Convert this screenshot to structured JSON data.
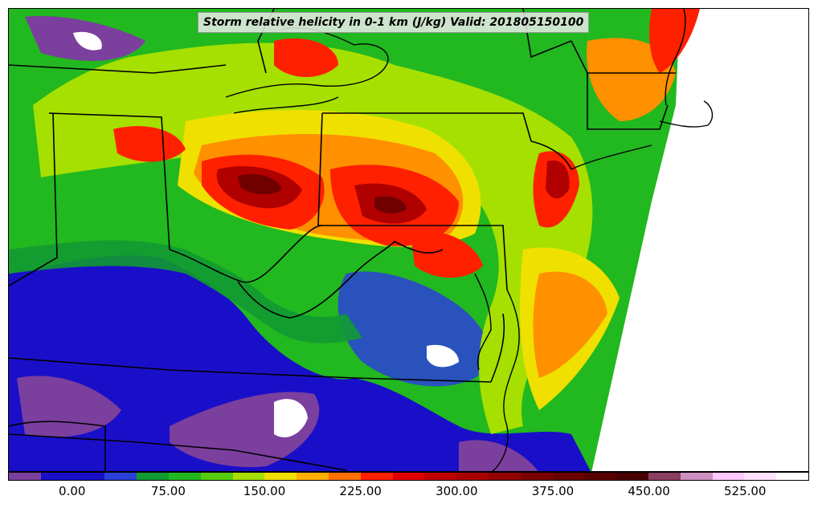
{
  "title": "Storm relative helicity in 0-1 km (J/kg) Valid: 201805150100",
  "colorbar": {
    "colors": [
      "#7b3f9e",
      "#1a0fc8",
      "#1a0fc8",
      "#2a3fd8",
      "#129a32",
      "#22b820",
      "#55cc10",
      "#a6e000",
      "#f0e000",
      "#ffb000",
      "#ff7000",
      "#ff2000",
      "#e00000",
      "#c00000",
      "#a80000",
      "#900000",
      "#780000",
      "#680000",
      "#580000",
      "#480000",
      "#8a4060",
      "#cc90c0",
      "#ffc8ff",
      "#ffe0ff",
      "#ffffff"
    ],
    "tick_labels": [
      "0.00",
      "75.00",
      "150.00",
      "225.00",
      "300.00",
      "375.00",
      "450.00",
      "525.00"
    ],
    "tick_positions": [
      0.08,
      0.2,
      0.32,
      0.44,
      0.56,
      0.68,
      0.8,
      0.92
    ]
  },
  "palette": {
    "purple": "#7b3f9e",
    "blue": "#1a0fc8",
    "dkgreen": "#129a32",
    "green": "#22b820",
    "ltgreen": "#8ad600",
    "yellow": "#f0e000",
    "orange": "#ff9000",
    "red": "#ff2000",
    "dkred": "#b00000",
    "maroon": "#700000",
    "white": "#ffffff",
    "borders": "#000000"
  }
}
